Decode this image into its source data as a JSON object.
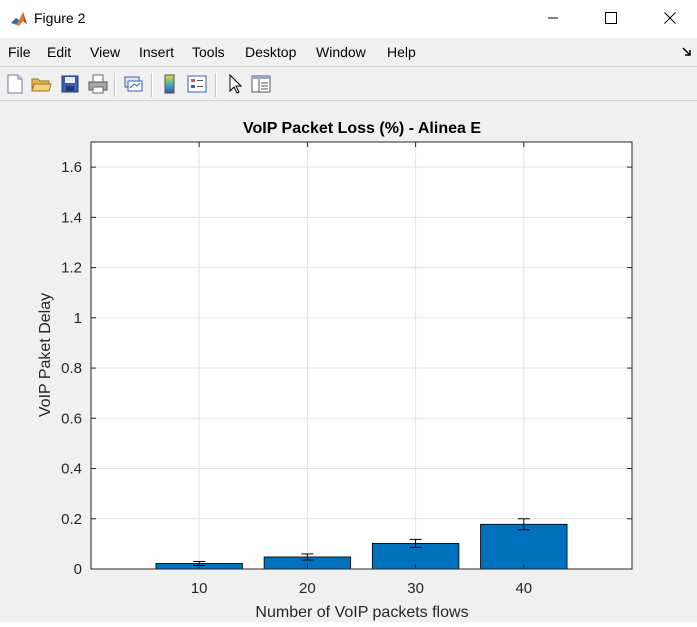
{
  "window": {
    "title": "Figure 2",
    "icon": "matlab-logo-icon",
    "controls": [
      "minimize-icon",
      "maximize-icon",
      "close-icon"
    ]
  },
  "menu": {
    "items": [
      "File",
      "Edit",
      "View",
      "Insert",
      "Tools",
      "Desktop",
      "Window",
      "Help"
    ]
  },
  "toolbar": {
    "icons": [
      "new-figure-icon",
      "open-file-icon",
      "save-icon",
      "print-icon",
      "link-plot-icon",
      "colorbar-icon",
      "legend-icon",
      "pointer-icon",
      "property-inspector-icon"
    ]
  },
  "colors": {
    "bar": "#0072bd",
    "axes_bg": "#ffffff",
    "figure_bg": "#f0f0f0",
    "grid": "#e3e3e3"
  },
  "chart_data": {
    "type": "bar",
    "title": "VoIP Packet Loss (%) - Alinea E",
    "xlabel": "Number of VoIP packets flows",
    "ylabel": "VoIP Paket Delay",
    "categories": [
      "10",
      "20",
      "30",
      "40"
    ],
    "x": [
      10,
      20,
      30,
      40
    ],
    "values": [
      0.022,
      0.048,
      0.102,
      0.178
    ],
    "errors": [
      0.008,
      0.012,
      0.016,
      0.022
    ],
    "xlim": [
      0,
      50
    ],
    "ylim": [
      0,
      1.7
    ],
    "yticks": [
      "0",
      "0.2",
      "0.4",
      "0.6",
      "0.8",
      "1",
      "1.2",
      "1.4",
      "1.6"
    ],
    "ytick_values": [
      0,
      0.2,
      0.4,
      0.6,
      0.8,
      1,
      1.2,
      1.4,
      1.6
    ],
    "grid": true,
    "error_bars": true
  }
}
